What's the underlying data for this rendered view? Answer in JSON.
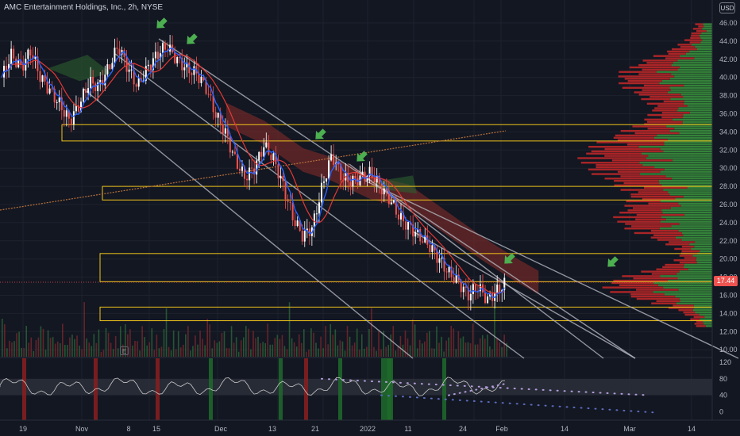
{
  "header": {
    "title": "AMC Entertainment Holdings, Inc., 2h, NYSE",
    "currency": "USD"
  },
  "last_price_label": "17.44",
  "earnings_marker": "E",
  "chart_data": {
    "type": "candlestick",
    "symbol": "AMC Entertainment Holdings, Inc.",
    "interval": "2h",
    "exchange": "NYSE",
    "y_ticks": [
      46,
      44,
      42,
      40,
      38,
      36,
      34,
      32,
      30,
      28,
      26,
      24,
      22,
      20,
      18,
      16,
      14,
      12,
      10
    ],
    "y_tick_labels": [
      "46.00",
      "44.00",
      "42.00",
      "40.00",
      "38.00",
      "36.00",
      "34.00",
      "32.00",
      "30.00",
      "28.00",
      "26.00",
      "24.00",
      "22.00",
      "20.00",
      "18.00",
      "16.00",
      "14.00",
      "12.00",
      "10.00"
    ],
    "oscillator_ticks": [
      120,
      80,
      40,
      0
    ],
    "x_ticks": [
      "19",
      "Nov",
      "8",
      "15",
      "Dec",
      "13",
      "21",
      "2022",
      "11",
      "24",
      "Feb",
      "14",
      "Mar",
      "14"
    ],
    "last_price": 17.44,
    "price_path": [
      [
        0,
        40
      ],
      [
        2,
        42.5
      ],
      [
        4,
        41
      ],
      [
        6,
        43
      ],
      [
        8,
        40
      ],
      [
        10,
        38.5
      ],
      [
        12,
        37
      ],
      [
        14,
        35.2
      ],
      [
        16,
        37
      ],
      [
        18,
        39.5
      ],
      [
        20,
        39
      ],
      [
        22,
        41
      ],
      [
        24,
        43.5
      ],
      [
        26,
        41
      ],
      [
        28,
        39
      ],
      [
        30,
        41
      ],
      [
        32,
        42.5
      ],
      [
        34,
        43.5
      ],
      [
        36,
        42
      ],
      [
        38,
        41
      ],
      [
        40,
        40.5
      ],
      [
        42,
        39
      ],
      [
        44,
        36
      ],
      [
        46,
        34
      ],
      [
        48,
        31
      ],
      [
        50,
        29
      ],
      [
        52,
        30
      ],
      [
        54,
        32.5
      ],
      [
        56,
        31
      ],
      [
        58,
        28
      ],
      [
        60,
        24.5
      ],
      [
        62,
        22.5
      ],
      [
        64,
        23.5
      ],
      [
        66,
        28
      ],
      [
        68,
        31.5
      ],
      [
        70,
        29
      ],
      [
        72,
        28.5
      ],
      [
        74,
        29
      ],
      [
        76,
        29.5
      ],
      [
        78,
        28
      ],
      [
        80,
        26.5
      ],
      [
        82,
        24.5
      ],
      [
        84,
        23.5
      ],
      [
        86,
        22.5
      ],
      [
        88,
        21.5
      ],
      [
        90,
        20
      ],
      [
        92,
        18.5
      ],
      [
        94,
        17.5
      ],
      [
        96,
        16
      ],
      [
        98,
        17
      ],
      [
        100,
        15.5
      ],
      [
        102,
        16.5
      ],
      [
        104,
        17.5
      ]
    ],
    "ichimoku_cloud": [
      [
        40,
        36
      ],
      [
        48,
        34
      ],
      [
        56,
        31
      ],
      [
        62,
        30
      ],
      [
        70,
        28
      ],
      [
        78,
        27
      ],
      [
        86,
        24
      ],
      [
        94,
        21
      ],
      [
        100,
        19
      ],
      [
        105,
        17.5
      ]
    ],
    "trend_channel": {
      "upper": [
        [
          32,
          44
        ],
        [
          100,
          10
        ]
      ],
      "middle": [
        [
          22,
          42
        ],
        [
          86,
          10.5
        ]
      ],
      "lower": [
        [
          18,
          40
        ],
        [
          72,
          11
        ]
      ],
      "extra": [
        [
          72,
          24
        ],
        [
          120,
          10
        ]
      ]
    },
    "horizontal_zones": [
      {
        "y_top": 34.8,
        "y_bottom": 33.0
      },
      {
        "y_top": 28.0,
        "y_bottom": 26.5
      },
      {
        "y_top": 20.6,
        "y_bottom": 17.5
      },
      {
        "y_top": 14.7,
        "y_bottom": 13.2
      }
    ],
    "long_ma": [
      [
        0,
        26
      ],
      [
        100,
        34
      ]
    ],
    "signal_arrows": [
      [
        32,
        45
      ],
      [
        38,
        43.5
      ],
      [
        64,
        34
      ],
      [
        72,
        30.5
      ],
      [
        104,
        19.5
      ],
      [
        126,
        19.5
      ]
    ],
    "oscillator_band": [
      40,
      80
    ],
    "volume_profile_shape": "right-side horizontal histogram, red and green",
    "colors": {
      "background": "#131722",
      "grid": "#1e222d",
      "up": "#ffffff",
      "down": "#ef5350",
      "ma_fast": "#2962ff",
      "ma_slow": "#e53935",
      "cloud_red": "#7a2a2a",
      "cloud_green": "#2c5e2e",
      "zone": "#f0c419",
      "channel": "#b2b5be",
      "arrow": "#4caf50",
      "vp_green": "#388e3c",
      "vp_red": "#c62828",
      "osc_band": "#2a2e39"
    }
  }
}
